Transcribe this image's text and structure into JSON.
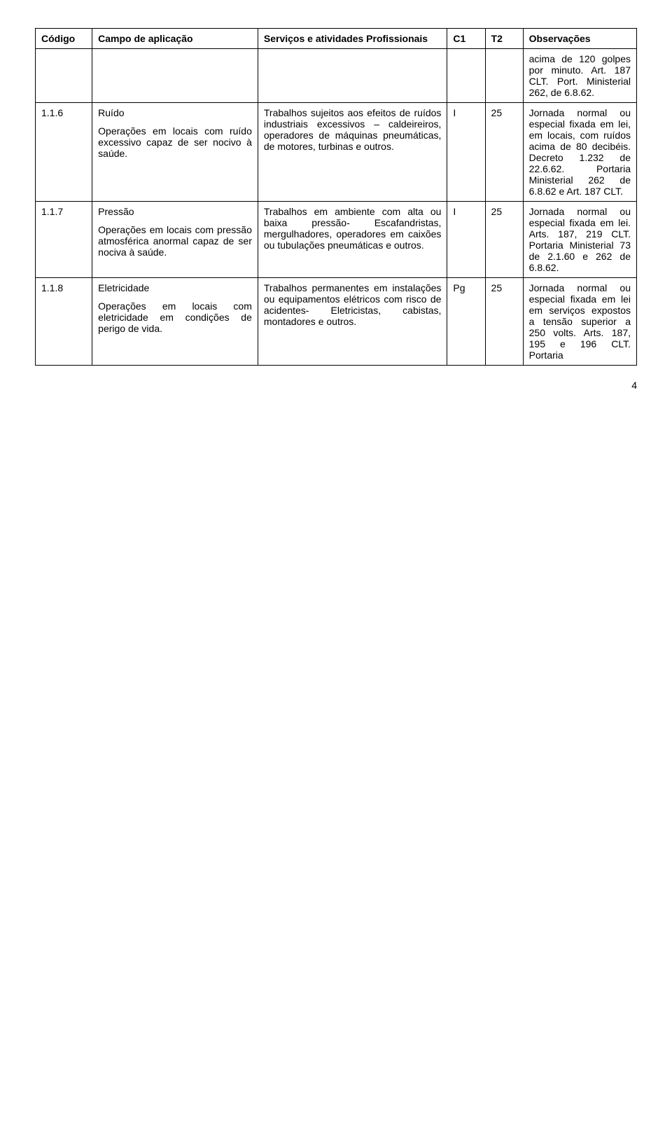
{
  "headers": {
    "codigo": "Código",
    "campo": "Campo de aplicação",
    "servicos": "Serviços e atividades Profissionais",
    "c1": "C1",
    "t2": "T2",
    "obs": "Observações"
  },
  "row0": {
    "obs": "acima de 120 golpes por minuto. Art. 187 CLT. Port. Ministerial 262, de 6.8.62."
  },
  "row1": {
    "codigo": "1.1.6",
    "campo_title": "Ruído",
    "campo_body": "Operações em locais com ruído excessivo capaz de ser nocivo à saúde.",
    "servicos": "Trabalhos sujeitos aos efeitos de ruídos industriais excessivos – caldeireiros, operadores de máquinas pneumáticas, de motores, turbinas e outros.",
    "c1": "I",
    "t2": "25",
    "obs": "Jornada normal ou especial fixada em lei, em locais, com ruídos acima de 80 decibéis. Decreto 1.232 de 22.6.62. Portaria Ministerial 262 de 6.8.62 e Art. 187 CLT."
  },
  "row2": {
    "codigo": "1.1.7",
    "campo_title": "Pressão",
    "campo_body": "Operações em locais com pressão atmosférica anormal capaz de ser nociva à saúde.",
    "servicos": "Trabalhos em ambiente com alta ou baixa pressão- Escafandristas, mergulhadores, operadores em caixões ou tubulações pneumáticas e outros.",
    "c1": "I",
    "t2": "25",
    "obs": "Jornada normal ou especial fixada em lei. Arts. 187, 219 CLT. Portaria Ministerial 73 de 2.1.60 e 262 de 6.8.62."
  },
  "row3": {
    "codigo": "1.1.8",
    "campo_title": "Eletricidade",
    "campo_body": "Operações em locais com eletricidade em condições de perigo de vida.",
    "servicos": "Trabalhos permanentes em instalações ou equipamentos elétricos com risco de acidentes- Eletricistas, cabistas, montadores e outros.",
    "c1": "Pg",
    "t2": "25",
    "obs": "Jornada normal ou especial fixada em lei em serviços expostos a tensão superior a 250 volts. Arts. 187, 195 e 196 CLT. Portaria"
  },
  "page_number": "4"
}
